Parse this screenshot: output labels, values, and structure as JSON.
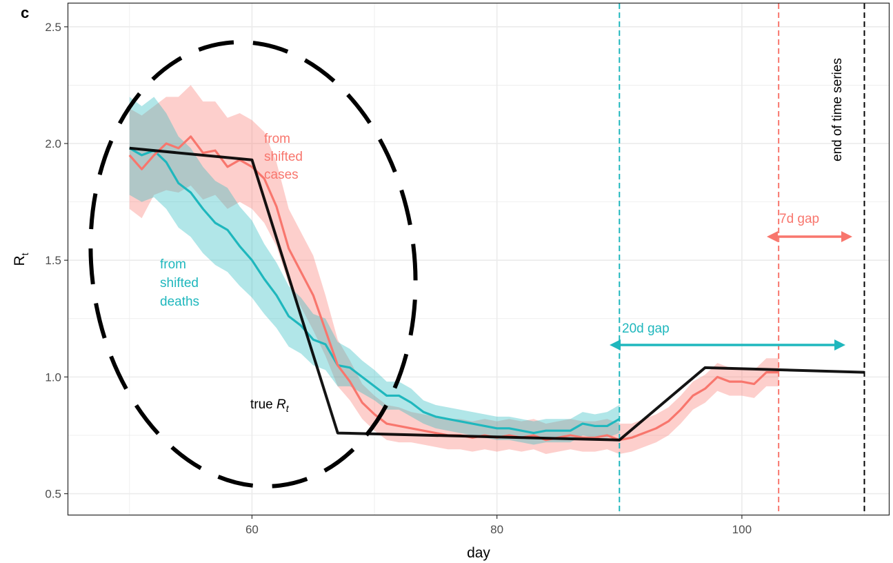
{
  "chart_data": {
    "type": "line",
    "panel_label": "c",
    "xlabel": "day",
    "ylabel": "R",
    "ylabel_subscript": "t",
    "xlim": [
      45,
      112
    ],
    "ylim": [
      0.41,
      2.6
    ],
    "x_ticks": [
      60,
      80,
      100
    ],
    "y_ticks": [
      0.5,
      1.0,
      1.5,
      2.0,
      2.5
    ],
    "x_tick_labels": [
      "60",
      "80",
      "100"
    ],
    "y_tick_labels": [
      "0.5",
      "1.0",
      "1.5",
      "2.0",
      "2.5"
    ],
    "grid": true,
    "colors": {
      "cases": "#f8766d",
      "deaths": "#1fb7bd",
      "true": "#000000"
    },
    "series": [
      {
        "key": "true",
        "x": [
          50,
          60,
          67,
          90,
          97,
          110
        ],
        "y": [
          1.98,
          1.93,
          0.76,
          0.73,
          1.04,
          1.02
        ]
      },
      {
        "key": "cases",
        "x": [
          50,
          51,
          52,
          53,
          54,
          55,
          56,
          57,
          58,
          59,
          60,
          61,
          62,
          63,
          64,
          65,
          66,
          67,
          68,
          69,
          70,
          71,
          72,
          73,
          74,
          75,
          76,
          77,
          78,
          79,
          80,
          81,
          82,
          83,
          84,
          85,
          86,
          87,
          88,
          89,
          90,
          91,
          92,
          93,
          94,
          95,
          96,
          97,
          98,
          99,
          100,
          101,
          102,
          103
        ],
        "y": [
          1.95,
          1.89,
          1.95,
          2.0,
          1.98,
          2.03,
          1.96,
          1.97,
          1.9,
          1.93,
          1.9,
          1.85,
          1.73,
          1.55,
          1.45,
          1.35,
          1.2,
          1.05,
          0.98,
          0.89,
          0.84,
          0.8,
          0.79,
          0.78,
          0.77,
          0.76,
          0.75,
          0.75,
          0.74,
          0.75,
          0.74,
          0.75,
          0.74,
          0.75,
          0.73,
          0.74,
          0.75,
          0.74,
          0.74,
          0.75,
          0.73,
          0.74,
          0.76,
          0.78,
          0.81,
          0.86,
          0.92,
          0.95,
          1.0,
          0.98,
          0.98,
          0.97,
          1.02,
          1.02
        ],
        "lower": [
          1.72,
          1.68,
          1.78,
          1.8,
          1.79,
          1.82,
          1.76,
          1.78,
          1.72,
          1.75,
          1.72,
          1.66,
          1.56,
          1.4,
          1.3,
          1.2,
          1.09,
          0.96,
          0.9,
          0.82,
          0.77,
          0.73,
          0.72,
          0.72,
          0.71,
          0.7,
          0.69,
          0.69,
          0.68,
          0.69,
          0.68,
          0.69,
          0.68,
          0.69,
          0.67,
          0.68,
          0.69,
          0.68,
          0.68,
          0.69,
          0.67,
          0.68,
          0.7,
          0.72,
          0.75,
          0.8,
          0.86,
          0.89,
          0.94,
          0.92,
          0.92,
          0.91,
          0.96,
          0.96
        ],
        "upper": [
          2.15,
          2.12,
          2.16,
          2.2,
          2.2,
          2.25,
          2.18,
          2.18,
          2.11,
          2.13,
          2.1,
          2.05,
          1.92,
          1.72,
          1.62,
          1.52,
          1.35,
          1.16,
          1.07,
          0.97,
          0.92,
          0.88,
          0.87,
          0.85,
          0.84,
          0.83,
          0.82,
          0.82,
          0.81,
          0.82,
          0.81,
          0.82,
          0.81,
          0.82,
          0.8,
          0.81,
          0.82,
          0.81,
          0.81,
          0.82,
          0.8,
          0.8,
          0.82,
          0.84,
          0.87,
          0.92,
          0.98,
          1.01,
          1.06,
          1.04,
          1.04,
          1.03,
          1.08,
          1.08
        ]
      },
      {
        "key": "deaths",
        "x": [
          50,
          51,
          52,
          53,
          54,
          55,
          56,
          57,
          58,
          59,
          60,
          61,
          62,
          63,
          64,
          65,
          66,
          67,
          68,
          69,
          70,
          71,
          72,
          73,
          74,
          75,
          76,
          77,
          78,
          79,
          80,
          81,
          82,
          83,
          84,
          85,
          86,
          87,
          88,
          89,
          90
        ],
        "y": [
          1.98,
          1.95,
          1.97,
          1.92,
          1.83,
          1.79,
          1.72,
          1.66,
          1.63,
          1.56,
          1.5,
          1.42,
          1.35,
          1.26,
          1.22,
          1.16,
          1.14,
          1.05,
          1.04,
          1.0,
          0.96,
          0.92,
          0.92,
          0.89,
          0.85,
          0.83,
          0.82,
          0.81,
          0.8,
          0.79,
          0.78,
          0.78,
          0.77,
          0.76,
          0.77,
          0.77,
          0.77,
          0.8,
          0.79,
          0.79,
          0.82
        ],
        "lower": [
          1.78,
          1.75,
          1.77,
          1.72,
          1.64,
          1.6,
          1.53,
          1.48,
          1.45,
          1.39,
          1.34,
          1.27,
          1.21,
          1.13,
          1.1,
          1.05,
          1.03,
          0.96,
          0.96,
          0.93,
          0.9,
          0.86,
          0.86,
          0.83,
          0.8,
          0.78,
          0.77,
          0.76,
          0.75,
          0.74,
          0.73,
          0.73,
          0.72,
          0.71,
          0.72,
          0.72,
          0.72,
          0.75,
          0.74,
          0.74,
          0.76
        ],
        "upper": [
          2.2,
          2.16,
          2.2,
          2.13,
          2.03,
          1.98,
          1.9,
          1.84,
          1.81,
          1.73,
          1.67,
          1.57,
          1.49,
          1.39,
          1.34,
          1.27,
          1.25,
          1.15,
          1.12,
          1.07,
          1.03,
          0.98,
          0.98,
          0.95,
          0.9,
          0.88,
          0.87,
          0.86,
          0.85,
          0.84,
          0.83,
          0.83,
          0.82,
          0.81,
          0.82,
          0.82,
          0.82,
          0.85,
          0.84,
          0.85,
          0.88
        ]
      }
    ],
    "vlines": [
      {
        "x": 90,
        "key": "deaths"
      },
      {
        "x": 103,
        "key": "cases"
      },
      {
        "x": 110,
        "key": "true"
      }
    ],
    "annotations": {
      "cases_label": [
        "from",
        "shifted",
        "cases"
      ],
      "deaths_label": [
        "from",
        "shifted",
        "deaths"
      ],
      "true_label_prefix": "true ",
      "true_label_symbol": "R",
      "true_label_subscript": "t",
      "gap_cases": "7d gap",
      "gap_deaths": "20d gap",
      "end_label": "end of time series"
    }
  }
}
